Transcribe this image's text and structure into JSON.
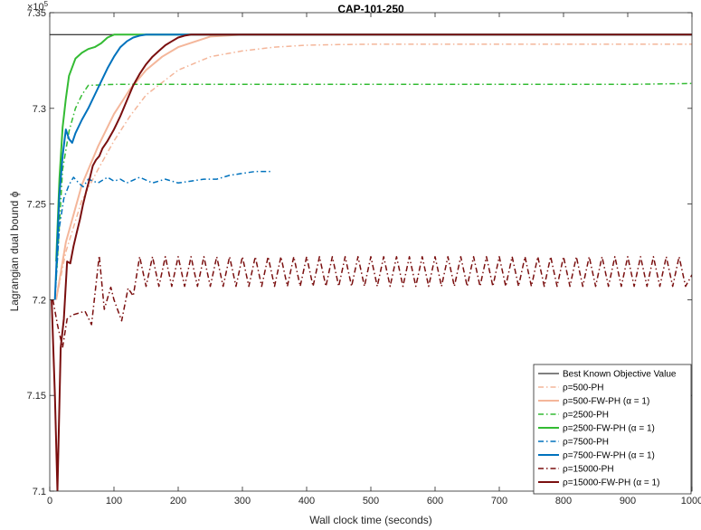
{
  "chart_data": {
    "type": "line",
    "title": "CAP-101-250",
    "xlabel": "Wall clock time (seconds)",
    "ylabel": "Lagrangian dual bound ϕ",
    "y_exponent_label": "×10",
    "y_exponent_power": "5",
    "xlim": [
      0,
      1000
    ],
    "ylim": [
      7.1,
      7.35
    ],
    "x_ticks": [
      0,
      100,
      200,
      300,
      400,
      500,
      600,
      700,
      800,
      900,
      1000
    ],
    "x_tick_labels": [
      "0",
      "100",
      "200",
      "300",
      "400",
      "500",
      "600",
      "700",
      "800",
      "900",
      "1000"
    ],
    "y_ticks": [
      7.1,
      7.15,
      7.2,
      7.25,
      7.3,
      7.35
    ],
    "y_tick_labels": [
      "7.1",
      "7.15",
      "7.2",
      "7.25",
      "7.3",
      "7.35"
    ],
    "grid": false,
    "legend_position": "bottom-right",
    "series": [
      {
        "name": "Best Known Objective Value",
        "color": "#000000",
        "dash": "solid",
        "width": 1,
        "x": [
          0,
          1000
        ],
        "y": [
          7.3385,
          7.3385
        ]
      },
      {
        "name": "ρ=500-PH",
        "color": "#f4b69a",
        "dash": "dashdot",
        "width": 1.5,
        "x": [
          10,
          25,
          50,
          75,
          100,
          125,
          150,
          200,
          250,
          300,
          350,
          400,
          450,
          500,
          600,
          700,
          800,
          900,
          1000
        ],
        "y": [
          7.2,
          7.225,
          7.252,
          7.268,
          7.283,
          7.296,
          7.307,
          7.32,
          7.327,
          7.33,
          7.332,
          7.333,
          7.3333,
          7.3335,
          7.3335,
          7.3335,
          7.3335,
          7.3335,
          7.3335
        ]
      },
      {
        "name": "ρ=500-FW-PH (α = 1)",
        "color": "#f4b69a",
        "dash": "solid",
        "width": 2,
        "x": [
          10,
          25,
          50,
          75,
          100,
          125,
          150,
          175,
          200,
          250,
          300,
          400,
          500,
          600,
          700,
          800,
          900,
          1000
        ],
        "y": [
          7.2,
          7.23,
          7.26,
          7.28,
          7.297,
          7.31,
          7.32,
          7.327,
          7.332,
          7.3375,
          7.3385,
          7.3385,
          7.3385,
          7.3385,
          7.3385,
          7.3385,
          7.3385,
          7.3385
        ]
      },
      {
        "name": "ρ=2500-PH",
        "color": "#33bb33",
        "dash": "dashdot",
        "width": 1.5,
        "x": [
          10,
          20,
          30,
          40,
          50,
          60,
          100,
          200,
          300,
          400,
          500,
          600,
          700,
          800,
          900,
          1000
        ],
        "y": [
          7.21,
          7.268,
          7.288,
          7.3,
          7.307,
          7.312,
          7.3125,
          7.3125,
          7.3125,
          7.3125,
          7.3125,
          7.3125,
          7.3125,
          7.3125,
          7.3125,
          7.313
        ]
      },
      {
        "name": "ρ=2500-FW-PH (α = 1)",
        "color": "#33bb33",
        "dash": "solid",
        "width": 2,
        "x": [
          10,
          15,
          20,
          25,
          30,
          40,
          50,
          60,
          70,
          80,
          90,
          100,
          110,
          120,
          150,
          200,
          300,
          400,
          500,
          600,
          700,
          800,
          900,
          1000
        ],
        "y": [
          7.22,
          7.263,
          7.29,
          7.305,
          7.317,
          7.326,
          7.329,
          7.331,
          7.332,
          7.334,
          7.337,
          7.3385,
          7.3385,
          7.3385,
          7.3385,
          7.3385,
          7.3385,
          7.3385,
          7.3385,
          7.3385,
          7.3385,
          7.3385,
          7.3385,
          7.3385
        ]
      },
      {
        "name": "ρ=7500-PH",
        "color": "#0072bd",
        "dash": "dashdot",
        "width": 1.5,
        "x": [
          8,
          15,
          22,
          30,
          37,
          45,
          52,
          60,
          75,
          90,
          100,
          110,
          120,
          140,
          160,
          180,
          200,
          220,
          240,
          260,
          280,
          300,
          320,
          345
        ],
        "y": [
          7.2,
          7.238,
          7.253,
          7.26,
          7.264,
          7.261,
          7.259,
          7.263,
          7.261,
          7.264,
          7.262,
          7.263,
          7.261,
          7.264,
          7.261,
          7.263,
          7.261,
          7.262,
          7.263,
          7.263,
          7.265,
          7.266,
          7.267,
          7.267
        ]
      },
      {
        "name": "ρ=7500-FW-PH (α = 1)",
        "color": "#0072bd",
        "dash": "solid",
        "width": 2,
        "x": [
          8,
          15,
          20,
          25,
          30,
          35,
          40,
          50,
          60,
          70,
          80,
          90,
          100,
          110,
          120,
          130,
          140,
          150,
          170,
          200,
          300,
          400,
          500,
          600,
          700,
          800,
          900,
          1000
        ],
        "y": [
          7.2,
          7.255,
          7.275,
          7.289,
          7.284,
          7.282,
          7.287,
          7.294,
          7.3,
          7.307,
          7.314,
          7.321,
          7.327,
          7.332,
          7.335,
          7.337,
          7.338,
          7.3385,
          7.3385,
          7.3385,
          7.3385,
          7.3385,
          7.3385,
          7.3385,
          7.3385,
          7.3385,
          7.3385,
          7.3385
        ]
      },
      {
        "name": "ρ=15000-PH",
        "color": "#7a0f0f",
        "dash": "dashdot",
        "width": 1.5,
        "x": [
          5,
          12,
          20,
          27,
          35,
          45,
          55,
          65,
          77,
          85,
          95,
          100,
          112,
          122,
          130,
          140,
          150,
          160,
          170,
          180,
          190,
          200,
          210,
          220,
          230,
          240,
          250,
          260,
          270,
          280,
          290,
          300,
          310,
          320,
          330,
          340,
          350,
          360,
          370,
          380,
          390,
          400,
          410,
          420,
          430,
          440,
          450,
          460,
          470,
          480,
          490,
          500,
          510,
          520,
          530,
          540,
          550,
          560,
          570,
          580,
          590,
          600,
          610,
          620,
          630,
          640,
          650,
          660,
          670,
          680,
          690,
          700,
          710,
          720,
          730,
          740,
          750,
          760,
          770,
          780,
          790,
          800,
          810,
          820,
          830,
          840,
          850,
          860,
          870,
          880,
          890,
          900,
          910,
          920,
          930,
          940,
          950,
          960,
          970,
          980,
          990,
          1000
        ],
        "y": [
          7.2,
          7.187,
          7.175,
          7.19,
          7.192,
          7.193,
          7.194,
          7.187,
          7.223,
          7.195,
          7.2065,
          7.2,
          7.189,
          7.206,
          7.202,
          7.2225,
          7.207,
          7.2225,
          7.207,
          7.2225,
          7.207,
          7.2225,
          7.207,
          7.2225,
          7.207,
          7.2225,
          7.207,
          7.2225,
          7.207,
          7.2225,
          7.207,
          7.2225,
          7.207,
          7.2225,
          7.207,
          7.2225,
          7.207,
          7.2225,
          7.207,
          7.2225,
          7.207,
          7.2225,
          7.207,
          7.2225,
          7.207,
          7.2225,
          7.207,
          7.2225,
          7.207,
          7.2225,
          7.207,
          7.2225,
          7.207,
          7.2225,
          7.207,
          7.2225,
          7.207,
          7.2225,
          7.207,
          7.2225,
          7.207,
          7.2225,
          7.207,
          7.2225,
          7.207,
          7.2225,
          7.207,
          7.2225,
          7.207,
          7.2225,
          7.207,
          7.2225,
          7.207,
          7.2225,
          7.207,
          7.2225,
          7.207,
          7.2225,
          7.207,
          7.2225,
          7.207,
          7.2225,
          7.207,
          7.2225,
          7.207,
          7.2225,
          7.207,
          7.2225,
          7.207,
          7.2225,
          7.207,
          7.2225,
          7.207,
          7.2225,
          7.207,
          7.2225,
          7.207,
          7.2225,
          7.207,
          7.2225,
          7.207,
          7.213
        ]
      },
      {
        "name": "ρ=15000-FW-PH (α = 1)",
        "color": "#7a0f0f",
        "dash": "solid",
        "width": 2,
        "x": [
          3,
          8,
          12,
          17,
          22,
          27,
          32,
          37,
          42,
          47,
          52,
          57,
          62,
          67,
          72,
          77,
          82,
          90,
          100,
          110,
          120,
          130,
          140,
          150,
          160,
          170,
          180,
          190,
          200,
          210,
          220,
          230,
          240,
          260,
          280,
          300,
          400,
          500,
          600,
          700,
          800,
          900,
          1000
        ],
        "y": [
          7.2,
          7.15,
          7.1,
          7.175,
          7.19,
          7.22,
          7.219,
          7.228,
          7.235,
          7.242,
          7.25,
          7.257,
          7.263,
          7.27,
          7.273,
          7.275,
          7.279,
          7.283,
          7.289,
          7.296,
          7.304,
          7.312,
          7.318,
          7.323,
          7.327,
          7.33,
          7.333,
          7.335,
          7.337,
          7.338,
          7.3385,
          7.3385,
          7.3385,
          7.3385,
          7.3385,
          7.3385,
          7.3385,
          7.3385,
          7.3385,
          7.3385,
          7.3385,
          7.3385,
          7.3385
        ]
      }
    ]
  }
}
